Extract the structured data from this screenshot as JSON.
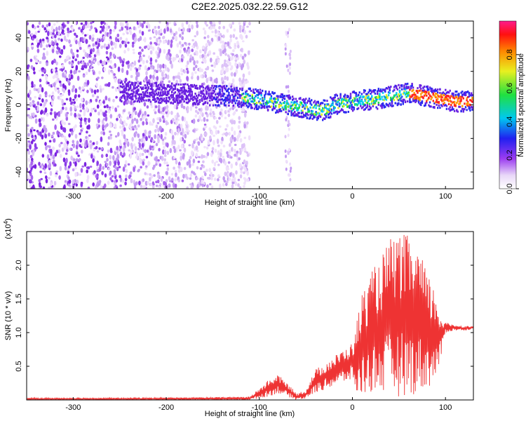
{
  "title": "C2E2.2025.032.22.59.G12",
  "chart_data": [
    {
      "type": "heatmap",
      "xlabel": "Height of straight line (km)",
      "ylabel": "Frequency (Hz)",
      "xlim": [
        -350,
        130
      ],
      "ylim": [
        -50,
        50
      ],
      "xticks": [
        -300,
        -200,
        -100,
        0,
        100
      ],
      "yticks": [
        -40,
        -20,
        0,
        20,
        40
      ],
      "xtick_labels": [
        "-300",
        "-200",
        "-100",
        "0",
        "100"
      ],
      "ytick_labels": [
        "-40",
        "-20",
        "0",
        "20",
        "40"
      ],
      "colorbar": {
        "label": "Normalized spectral amplitude",
        "range": [
          0,
          1
        ],
        "ticks": [
          0.0,
          0.2,
          0.4,
          0.6,
          0.8
        ],
        "tick_labels": [
          "0.0",
          "0.2",
          "0.4",
          "0.6",
          "0.8"
        ],
        "colormap": "rainbow (white-purple-blue-cyan-green-yellow-red-magenta)"
      },
      "signal_track": {
        "x": [
          -250,
          -200,
          -160,
          -130,
          -110,
          -90,
          -70,
          -50,
          -40,
          -30,
          -20,
          -10,
          0,
          10,
          20,
          30,
          40,
          50,
          60,
          70,
          80,
          90,
          100,
          110,
          120,
          130
        ],
        "freq": [
          8,
          7,
          6,
          5,
          4,
          2,
          0,
          -2,
          -3,
          -3,
          0,
          1,
          2,
          3,
          3,
          4,
          5,
          6,
          7,
          6,
          5,
          4,
          3,
          2,
          2,
          2
        ]
      },
      "noise_region_x": [
        -350,
        -110
      ]
    },
    {
      "type": "line",
      "xlabel": "Height of straight line (km)",
      "ylabel": "SNR (10 * v/v)",
      "yscale_note": "(x10",
      "yscale_exp": "4",
      "xlim": [
        -350,
        130
      ],
      "ylim": [
        0,
        2.5
      ],
      "xticks": [
        -300,
        -200,
        -100,
        0,
        100
      ],
      "yticks": [
        0.5,
        1.0,
        1.5,
        2.0
      ],
      "xtick_labels": [
        "-300",
        "-200",
        "-100",
        "0",
        "100"
      ],
      "ytick_labels": [
        "0.5",
        "1.0",
        "1.5",
        "2.0"
      ],
      "series": [
        {
          "color": "#ee3333",
          "envelope": {
            "x": [
              -350,
              -250,
              -150,
              -110,
              -90,
              -80,
              -70,
              -60,
              -50,
              -40,
              -30,
              -20,
              -10,
              0,
              5,
              10,
              20,
              30,
              40,
              50,
              60,
              70,
              80,
              90,
              95,
              100,
              110,
              120,
              130
            ],
            "low": [
              0.0,
              0.0,
              0.0,
              0.0,
              0.05,
              0.1,
              0.05,
              0.0,
              0.02,
              0.1,
              0.15,
              0.2,
              0.25,
              0.3,
              0.02,
              0.05,
              0.1,
              0.1,
              0.05,
              0.05,
              0.05,
              0.1,
              0.15,
              0.3,
              0.6,
              1.0,
              1.03,
              1.03,
              1.05
            ],
            "high": [
              0.03,
              0.03,
              0.04,
              0.05,
              0.3,
              0.38,
              0.25,
              0.1,
              0.15,
              0.45,
              0.55,
              0.65,
              0.75,
              0.85,
              1.2,
              1.6,
              1.9,
              2.1,
              2.4,
              2.45,
              2.45,
              2.3,
              1.9,
              1.6,
              1.3,
              1.15,
              1.12,
              1.1,
              1.1
            ]
          }
        }
      ]
    }
  ]
}
